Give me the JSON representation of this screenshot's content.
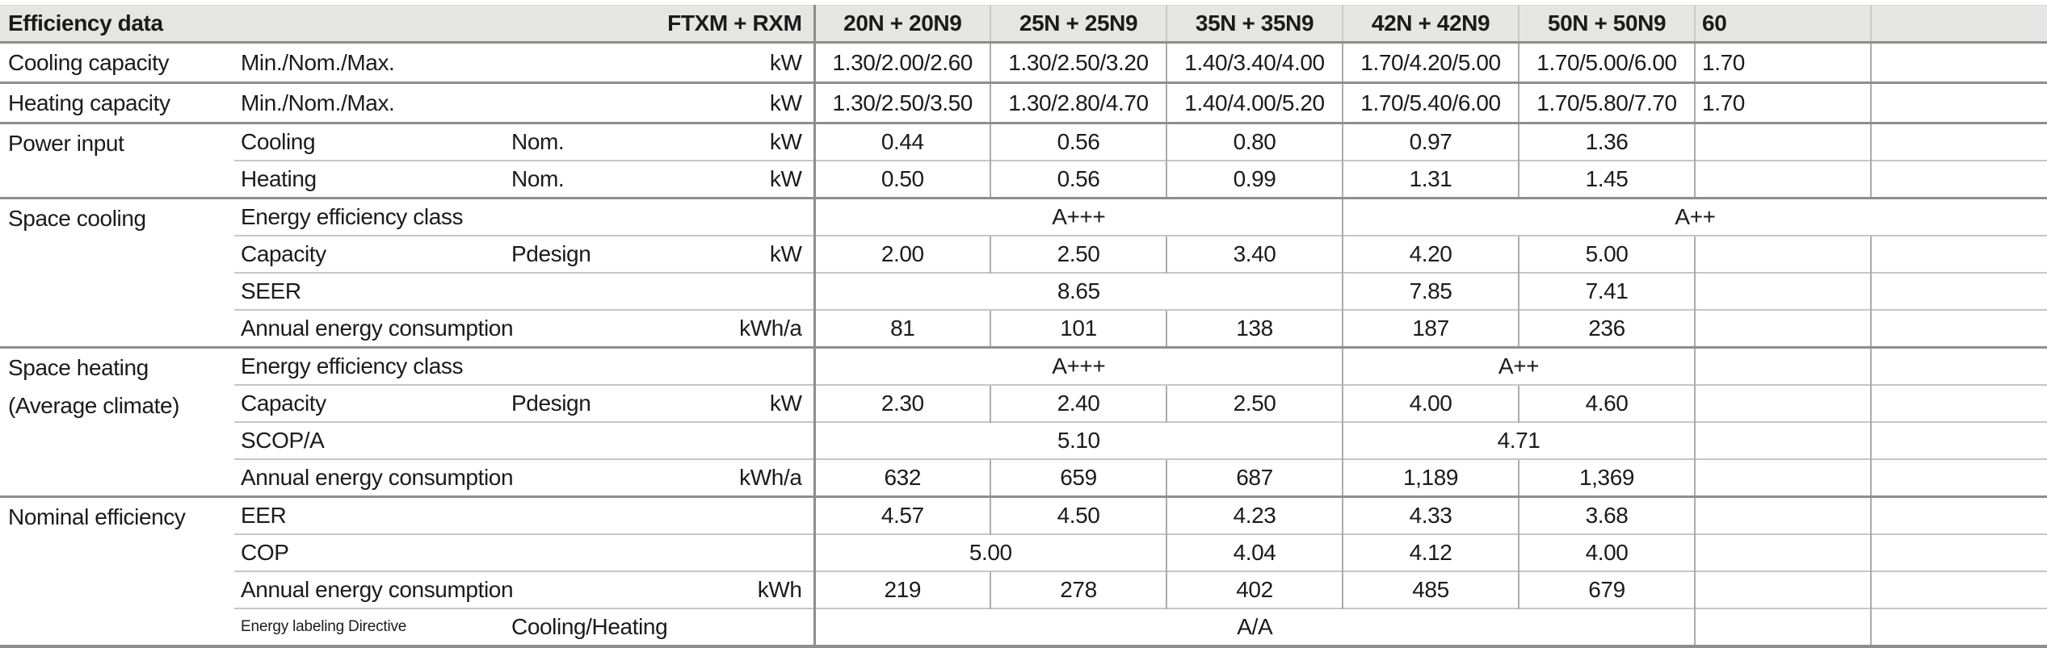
{
  "title": "Efficiency data",
  "series_label": "FTXM + RXM",
  "columns": [
    "20N + 20N9",
    "25N + 25N9",
    "35N + 35N9",
    "42N + 42N9",
    "50N + 50N9"
  ],
  "clipped_column": "60",
  "colors": {
    "header_bg": "#e5e5e4",
    "text": "#1b1b1b",
    "rule_strong": "#8e8e8e",
    "rule_light": "#c6c6c6",
    "grid_line": "#ababab"
  },
  "rows": [
    {
      "group": "Cooling capacity",
      "grouprows": 1,
      "label": "Min./Nom./Max.",
      "sub": "",
      "unit": "kW",
      "rule": "none",
      "cells": [
        {
          "t": "1.30/2.00/2.60"
        },
        {
          "t": "1.30/2.50/3.20"
        },
        {
          "t": "1.40/3.40/4.00"
        },
        {
          "t": "1.70/4.20/5.00"
        },
        {
          "t": "1.70/5.00/6.00"
        },
        {
          "t": "1.70",
          "frag": true
        },
        {
          "t": ""
        }
      ]
    },
    {
      "group": "Heating capacity",
      "grouprows": 1,
      "label": "Min./Nom./Max.",
      "sub": "",
      "unit": "kW",
      "rule": "thick",
      "cells": [
        {
          "t": "1.30/2.50/3.50"
        },
        {
          "t": "1.30/2.80/4.70"
        },
        {
          "t": "1.40/4.00/5.20"
        },
        {
          "t": "1.70/5.40/6.00"
        },
        {
          "t": "1.70/5.80/7.70"
        },
        {
          "t": "1.70",
          "frag": true
        },
        {
          "t": ""
        }
      ]
    },
    {
      "group": "Power input",
      "grouprows": 2,
      "label": "Cooling",
      "sub": "Nom.",
      "unit": "kW",
      "rule": "thick",
      "cells": [
        {
          "t": "0.44"
        },
        {
          "t": "0.56"
        },
        {
          "t": "0.80"
        },
        {
          "t": "0.97"
        },
        {
          "t": "1.36"
        },
        {
          "t": ""
        },
        {
          "t": ""
        }
      ]
    },
    {
      "group": null,
      "label": "Heating",
      "sub": "Nom.",
      "unit": "kW",
      "rule": "thin",
      "cells": [
        {
          "t": "0.50"
        },
        {
          "t": "0.56"
        },
        {
          "t": "0.99"
        },
        {
          "t": "1.31"
        },
        {
          "t": "1.45"
        },
        {
          "t": ""
        },
        {
          "t": ""
        }
      ]
    },
    {
      "group": "Space cooling",
      "grouprows": 4,
      "label": "Energy efficiency class",
      "sub": "",
      "unit": "",
      "rule": "thick",
      "cells": [
        {
          "t": "A+++",
          "span": 3
        },
        {
          "t": "A++",
          "span": 4
        }
      ]
    },
    {
      "group": null,
      "label": "Capacity",
      "sub": "Pdesign",
      "unit": "kW",
      "rule": "thin",
      "cells": [
        {
          "t": "2.00"
        },
        {
          "t": "2.50"
        },
        {
          "t": "3.40"
        },
        {
          "t": "4.20"
        },
        {
          "t": "5.00"
        },
        {
          "t": ""
        },
        {
          "t": ""
        }
      ]
    },
    {
      "group": null,
      "label": "SEER",
      "sub": "",
      "unit": "",
      "rule": "thin",
      "cells": [
        {
          "t": "8.65",
          "span": 3
        },
        {
          "t": "7.85"
        },
        {
          "t": "7.41"
        },
        {
          "t": ""
        },
        {
          "t": ""
        }
      ]
    },
    {
      "group": null,
      "label": "Annual energy consumption",
      "sub": "",
      "unit": "kWh/a",
      "rule": "thin",
      "cells": [
        {
          "t": "81"
        },
        {
          "t": "101"
        },
        {
          "t": "138"
        },
        {
          "t": "187"
        },
        {
          "t": "236"
        },
        {
          "t": ""
        },
        {
          "t": ""
        }
      ]
    },
    {
      "group": "Space heating",
      "group2": "(Average climate)",
      "grouprows": 4,
      "label": "Energy efficiency class",
      "sub": "",
      "unit": "",
      "rule": "thick",
      "cells": [
        {
          "t": "A+++",
          "span": 3
        },
        {
          "t": "A++",
          "span": 2
        },
        {
          "t": ""
        },
        {
          "t": ""
        }
      ]
    },
    {
      "group": null,
      "label": "Capacity",
      "sub": "Pdesign",
      "unit": "kW",
      "rule": "thin",
      "cells": [
        {
          "t": "2.30"
        },
        {
          "t": "2.40"
        },
        {
          "t": "2.50"
        },
        {
          "t": "4.00"
        },
        {
          "t": "4.60"
        },
        {
          "t": ""
        },
        {
          "t": ""
        }
      ]
    },
    {
      "group": null,
      "label": "SCOP/A",
      "sub": "",
      "unit": "",
      "rule": "thin",
      "cells": [
        {
          "t": "5.10",
          "span": 3
        },
        {
          "t": "4.71",
          "span": 2
        },
        {
          "t": ""
        },
        {
          "t": ""
        }
      ]
    },
    {
      "group": null,
      "label": "Annual energy consumption",
      "sub": "",
      "unit": "kWh/a",
      "rule": "thin",
      "cells": [
        {
          "t": "632"
        },
        {
          "t": "659"
        },
        {
          "t": "687"
        },
        {
          "t": "1,189"
        },
        {
          "t": "1,369"
        },
        {
          "t": ""
        },
        {
          "t": ""
        }
      ]
    },
    {
      "group": "Nominal efficiency",
      "grouprows": 4,
      "label": "EER",
      "sub": "",
      "unit": "",
      "rule": "thick",
      "cells": [
        {
          "t": "4.57"
        },
        {
          "t": "4.50"
        },
        {
          "t": "4.23"
        },
        {
          "t": "4.33"
        },
        {
          "t": "3.68"
        },
        {
          "t": ""
        },
        {
          "t": ""
        }
      ]
    },
    {
      "group": null,
      "label": "COP",
      "sub": "",
      "unit": "",
      "rule": "thin",
      "cells": [
        {
          "t": "5.00",
          "span": 2
        },
        {
          "t": "4.04"
        },
        {
          "t": "4.12"
        },
        {
          "t": "4.00"
        },
        {
          "t": ""
        },
        {
          "t": ""
        }
      ]
    },
    {
      "group": null,
      "label": "Annual energy consumption",
      "sub": "",
      "unit": "kWh",
      "rule": "thin",
      "cells": [
        {
          "t": "219"
        },
        {
          "t": "278"
        },
        {
          "t": "402"
        },
        {
          "t": "485"
        },
        {
          "t": "679"
        },
        {
          "t": ""
        },
        {
          "t": ""
        }
      ]
    },
    {
      "group": null,
      "label": "Energy labeling Directive",
      "label_small": true,
      "sub": "Cooling/Heating",
      "unit": "",
      "rule": "thin",
      "cells": [
        {
          "t": "A/A",
          "span": 5
        },
        {
          "t": ""
        },
        {
          "t": ""
        }
      ]
    }
  ]
}
